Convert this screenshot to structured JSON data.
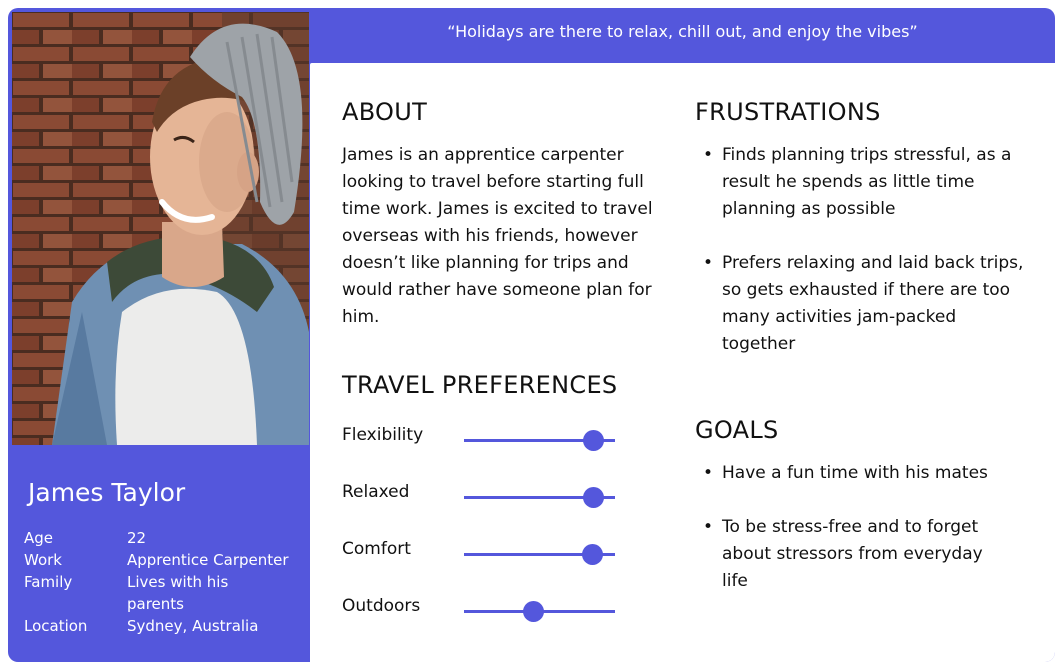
{
  "quote": "“Holidays are there to relax, chill out, and enjoy the vibes”",
  "persona": {
    "name": "James Taylor",
    "details": [
      {
        "label": "Age",
        "value": "22"
      },
      {
        "label": "Work",
        "value": "Apprentice Carpenter"
      },
      {
        "label": "Family",
        "value": "Lives with his parents"
      },
      {
        "label": "Location",
        "value": "Sydney, Australia"
      }
    ]
  },
  "about": {
    "heading": "ABOUT",
    "text": "James is an apprentice carpenter looking to travel before starting full time work. James is excited to travel overseas with his friends, however doesn’t like planning for trips and would rather have someone plan for him."
  },
  "travel_preferences": {
    "heading": "TRAVEL PREFERENCES",
    "items": [
      {
        "label": "Flexibility",
        "level": 0.86
      },
      {
        "label": "Relaxed",
        "level": 0.86
      },
      {
        "label": "Comfort",
        "level": 0.85
      },
      {
        "label": "Outdoors",
        "level": 0.46
      }
    ]
  },
  "frustrations": {
    "heading": "FRUSTRATIONS",
    "items": [
      "Finds planning trips stressful, as a result he spends as little time planning as possible",
      "Prefers relaxing and laid back trips, so gets exhausted if there are too many activities jam-packed together"
    ]
  },
  "goals": {
    "heading": "GOALS",
    "items": [
      "Have a fun time with his mates",
      "To be stress-free and to forget about stressors from everyday life"
    ]
  },
  "colors": {
    "accent": "#5457DC",
    "text": "#111111"
  }
}
